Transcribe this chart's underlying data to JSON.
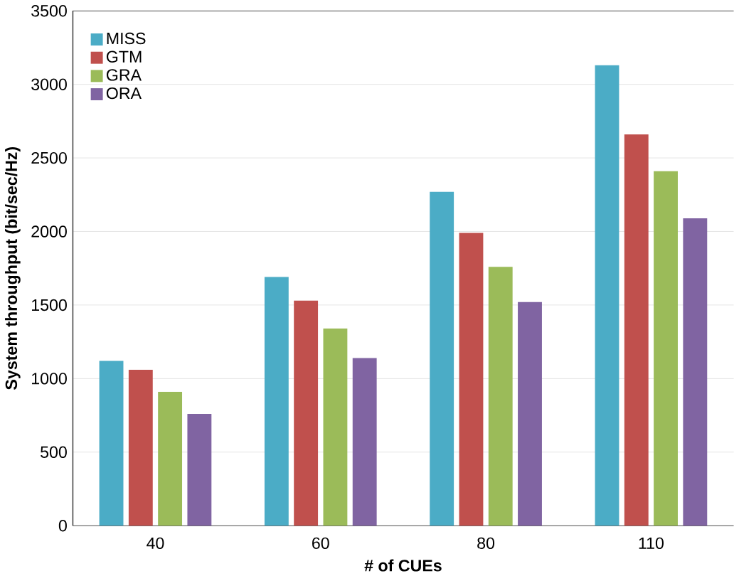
{
  "chart_data": {
    "type": "bar",
    "xlabel": "# of CUEs",
    "ylabel": "System throughput (bit/sec/Hz)",
    "categories": [
      "40",
      "60",
      "80",
      "110"
    ],
    "series": [
      {
        "name": "MISS",
        "color": "#4bacc6",
        "values": [
          1120,
          1690,
          2270,
          3130
        ]
      },
      {
        "name": "GTM",
        "color": "#c0504d",
        "values": [
          1060,
          1530,
          1990,
          2660
        ]
      },
      {
        "name": "GRA",
        "color": "#9bbb59",
        "values": [
          910,
          1340,
          1760,
          2410
        ]
      },
      {
        "name": "ORA",
        "color": "#8064a2",
        "values": [
          760,
          1140,
          1520,
          2090
        ]
      }
    ],
    "ylim": [
      0,
      3500
    ],
    "yticks": [
      0,
      500,
      1000,
      1500,
      2000,
      2500,
      3000,
      3500
    ],
    "grid": "y",
    "legend": "top left"
  }
}
